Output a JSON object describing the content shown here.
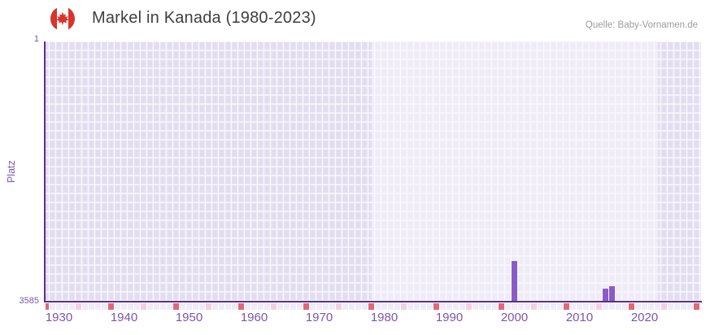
{
  "header": {
    "title": "Markel in Kanada (1980-2023)",
    "source": "Quelle: Baby-Vornamen.de",
    "flag": "canada-flag-icon"
  },
  "chart_data": {
    "type": "bar",
    "title": "Markel in Kanada (1980-2023)",
    "xlabel": "",
    "ylabel": "Platz",
    "y_axis": {
      "top_tick": "1",
      "bottom_tick": "3585",
      "min": 1,
      "max": 3585,
      "inverted": true
    },
    "x_axis": {
      "min": 1928,
      "max": 2028,
      "tick_years": [
        1930,
        1940,
        1950,
        1960,
        1970,
        1980,
        1990,
        2000,
        2010,
        2020
      ]
    },
    "series": [
      {
        "name": "Markel",
        "points": [
          {
            "year": 2000,
            "rank": 3035
          },
          {
            "year": 2014,
            "rank": 3420
          },
          {
            "year": 2015,
            "rank": 3380
          }
        ]
      }
    ],
    "highlight_band": {
      "from": 1978.5,
      "to": 2022.5
    },
    "decade_markers": {
      "red_years": [
        1928,
        1938,
        1948,
        1958,
        1968,
        1978,
        1988,
        1998,
        2008,
        2018,
        2028
      ],
      "pink_years": [
        1933,
        1943,
        1953,
        1963,
        1973,
        1983,
        1993,
        2003,
        2013,
        2023
      ]
    },
    "grid": true,
    "legend": false,
    "colors": {
      "bar": "#8a5bc7",
      "axis": "#5a2e91",
      "axis_labels": "#7d55ab",
      "band_dark": "#e3deef",
      "band_light": "#efecf8",
      "gridline": "#f9f8fd",
      "marker_red": "#e16876",
      "marker_pink": "#f3d0de",
      "marker_default": "#efecf7",
      "title_text": "#3f3f3f",
      "source_text": "#9d9d9d",
      "flag_red": "#d7342e"
    }
  }
}
